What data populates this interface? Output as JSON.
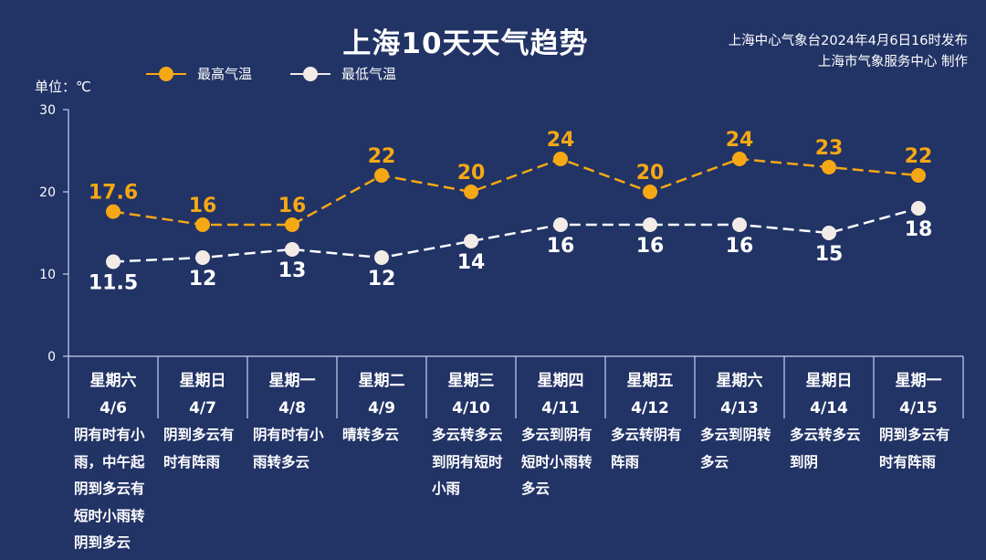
{
  "header": {
    "title": "上海10天天气趋势",
    "source_line1": "上海中心气象台2024年4月6日16时发布",
    "source_line2": "上海市气象服务中心 制作"
  },
  "unit_label": "单位：℃",
  "colors": {
    "background": "#223366",
    "high": "#f5a814",
    "low": "#ffffff",
    "axis": "#c8d3f0"
  },
  "chart_data": {
    "type": "line",
    "ylim": [
      0,
      30
    ],
    "yticks": [
      0,
      10,
      20,
      30
    ],
    "grid": false,
    "legend_position": "top-left",
    "weekdays": [
      "星期六",
      "星期日",
      "星期一",
      "星期二",
      "星期三",
      "星期四",
      "星期五",
      "星期六",
      "星期日",
      "星期一"
    ],
    "dates": [
      "4/6",
      "4/7",
      "4/8",
      "4/9",
      "4/10",
      "4/11",
      "4/12",
      "4/13",
      "4/14",
      "4/15"
    ],
    "series": [
      {
        "name": "最高气温",
        "color": "#f5a814",
        "values": [
          17.6,
          16,
          16,
          22,
          20,
          24,
          20,
          24,
          23,
          22
        ]
      },
      {
        "name": "最低气温",
        "color": "#ffffff",
        "values": [
          11.5,
          12,
          13,
          12,
          14,
          16,
          16,
          16,
          15,
          18
        ]
      }
    ],
    "value_labels": {
      "high": [
        "17.6",
        "16",
        "16",
        "22",
        "20",
        "24",
        "20",
        "24",
        "23",
        "22"
      ],
      "low": [
        "11.5",
        "12",
        "13",
        "12",
        "14",
        "16",
        "16",
        "16",
        "15",
        "18"
      ]
    },
    "conditions": [
      "阴有时有小雨，中午起阴到多云有短时小雨转阴到多云",
      "阴到多云有时有阵雨",
      "阴有时有小雨转多云",
      "晴转多云",
      "多云转多云到阴有短时小雨",
      "多云到阴有短时小雨转多云",
      "多云转阴有阵雨",
      "多云到阴转多云",
      "多云转多云到阴",
      "阴到多云有时有阵雨"
    ]
  }
}
